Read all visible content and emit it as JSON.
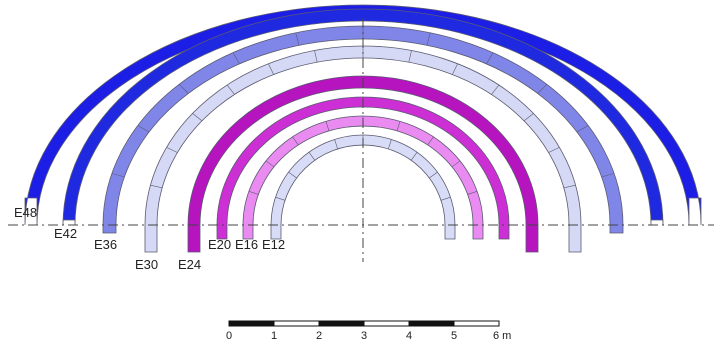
{
  "arches": [
    {
      "label": "E48",
      "color": "#1c1ee6"
    },
    {
      "label": "E42",
      "color": "#1f2ae0"
    },
    {
      "label": "E36",
      "color": "#7f86e8"
    },
    {
      "label": "E30",
      "color": "#d6d9f5"
    },
    {
      "label": "E24",
      "color": "#b514be"
    },
    {
      "label": "E20",
      "color": "#cc2fd4"
    },
    {
      "label": "E16",
      "color": "#e98bf0"
    },
    {
      "label": "E12",
      "color": "#d9dcf7"
    }
  ],
  "scale_bar": {
    "ticks": [
      "0",
      "1",
      "2",
      "3",
      "4",
      "5",
      "6 m"
    ]
  }
}
